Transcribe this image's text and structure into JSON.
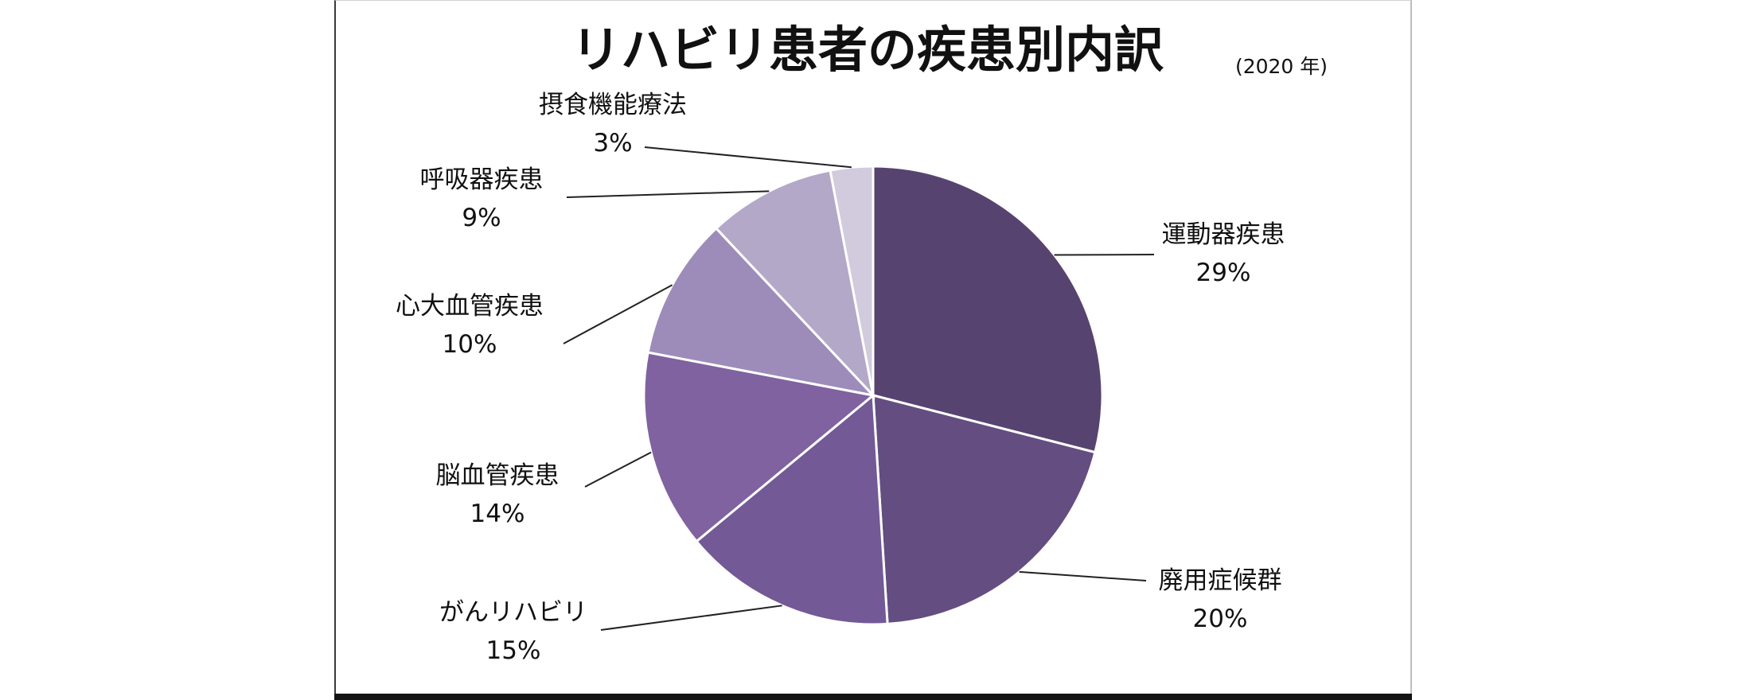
{
  "chart_data": {
    "type": "pie",
    "title": "リハビリ患者の疾患別内訳",
    "subtitle": "(2020 年)",
    "slices": [
      {
        "name": "運動器疾患",
        "value": 29,
        "value_label": "29%",
        "color": "#574370"
      },
      {
        "name": "廃用症候群",
        "value": 20,
        "value_label": "20%",
        "color": "#644d80"
      },
      {
        "name": "がんリハビリ",
        "value": 15,
        "value_label": "15%",
        "color": "#735996"
      },
      {
        "name": "脳血管疾患",
        "value": 14,
        "value_label": "14%",
        "color": "#7f629f"
      },
      {
        "name": "心大血管疾患",
        "value": 10,
        "value_label": "10%",
        "color": "#9d8cb9"
      },
      {
        "name": "呼吸器疾患",
        "value": 9,
        "value_label": "9%",
        "color": "#b4a8c9"
      },
      {
        "name": "摂食機能療法",
        "value": 3,
        "value_label": "3%",
        "color": "#d2cadd"
      }
    ],
    "start_angle": "12 o'clock",
    "direction": "clockwise",
    "legend": "none",
    "data_labels": "outside with leader lines"
  }
}
